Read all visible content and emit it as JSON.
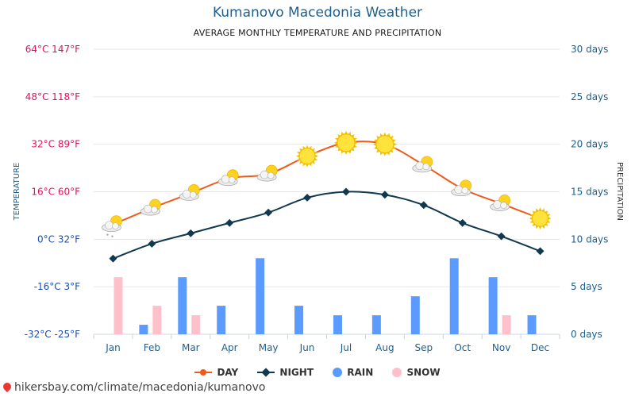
{
  "title": "Kumanovo Macedonia Weather",
  "subtitle": "AVERAGE MONTHLY TEMPERATURE AND PRECIPITATION",
  "watermark": "hikersbay.com/climate/macedonia/kumanovo",
  "colors": {
    "day": "#f05a1a",
    "night": "#10384f",
    "rain": "#5b9bff",
    "snow": "#ffc0cb",
    "left_axis": "#e0115f",
    "right_axis": "#1e5f8e",
    "grid": "#e6e6e6"
  },
  "chart_data": {
    "type": "line",
    "categories": [
      "Jan",
      "Feb",
      "Mar",
      "Apr",
      "May",
      "Jun",
      "Jul",
      "Aug",
      "Sep",
      "Oct",
      "Nov",
      "Dec"
    ],
    "ylabel": "TEMPERATURE",
    "y2label": "PRECIPITATION",
    "ylim": [
      -32,
      64
    ],
    "y2lim": [
      0,
      30
    ],
    "yticks": [
      "-32°C -25°F",
      "-16°C 3°F",
      "0°C 32°F",
      "16°C 60°F",
      "32°C 89°F",
      "48°C 118°F",
      "64°C 147°F"
    ],
    "ytick_values": [
      -32,
      -16,
      0,
      16,
      32,
      48,
      64
    ],
    "y2ticks": [
      "0 days",
      "5 days",
      "10 days",
      "15 days",
      "20 days",
      "25 days",
      "30 days"
    ],
    "y2tick_values": [
      0,
      5,
      10,
      15,
      20,
      25,
      30
    ],
    "grid": true,
    "legend_position": "bottom",
    "series": [
      {
        "name": "DAY",
        "type": "line",
        "axis": "left",
        "values": [
          5,
          10.5,
          15.5,
          20.5,
          22,
          28,
          32.5,
          32,
          25,
          17,
          12,
          7
        ]
      },
      {
        "name": "NIGHT",
        "type": "line",
        "axis": "left",
        "values": [
          -6.5,
          -1.5,
          2,
          5.5,
          9,
          14,
          16,
          15,
          11.5,
          5.5,
          1,
          -4
        ]
      },
      {
        "name": "RAIN",
        "type": "bar",
        "axis": "right",
        "values": [
          0,
          1,
          6,
          3,
          8,
          3,
          2,
          2,
          4,
          8,
          6,
          2
        ]
      },
      {
        "name": "SNOW",
        "type": "bar",
        "axis": "right",
        "values": [
          6,
          3,
          2,
          0,
          0,
          0,
          0,
          0,
          0,
          0,
          2,
          0
        ]
      }
    ],
    "weather_icons": [
      "cloud-snow",
      "sun-cloud",
      "sun-cloud",
      "sun-cloud",
      "sun-cloud",
      "sun",
      "sun",
      "sun",
      "sun-cloud",
      "sun-cloud",
      "sun-cloud",
      "sun"
    ]
  }
}
